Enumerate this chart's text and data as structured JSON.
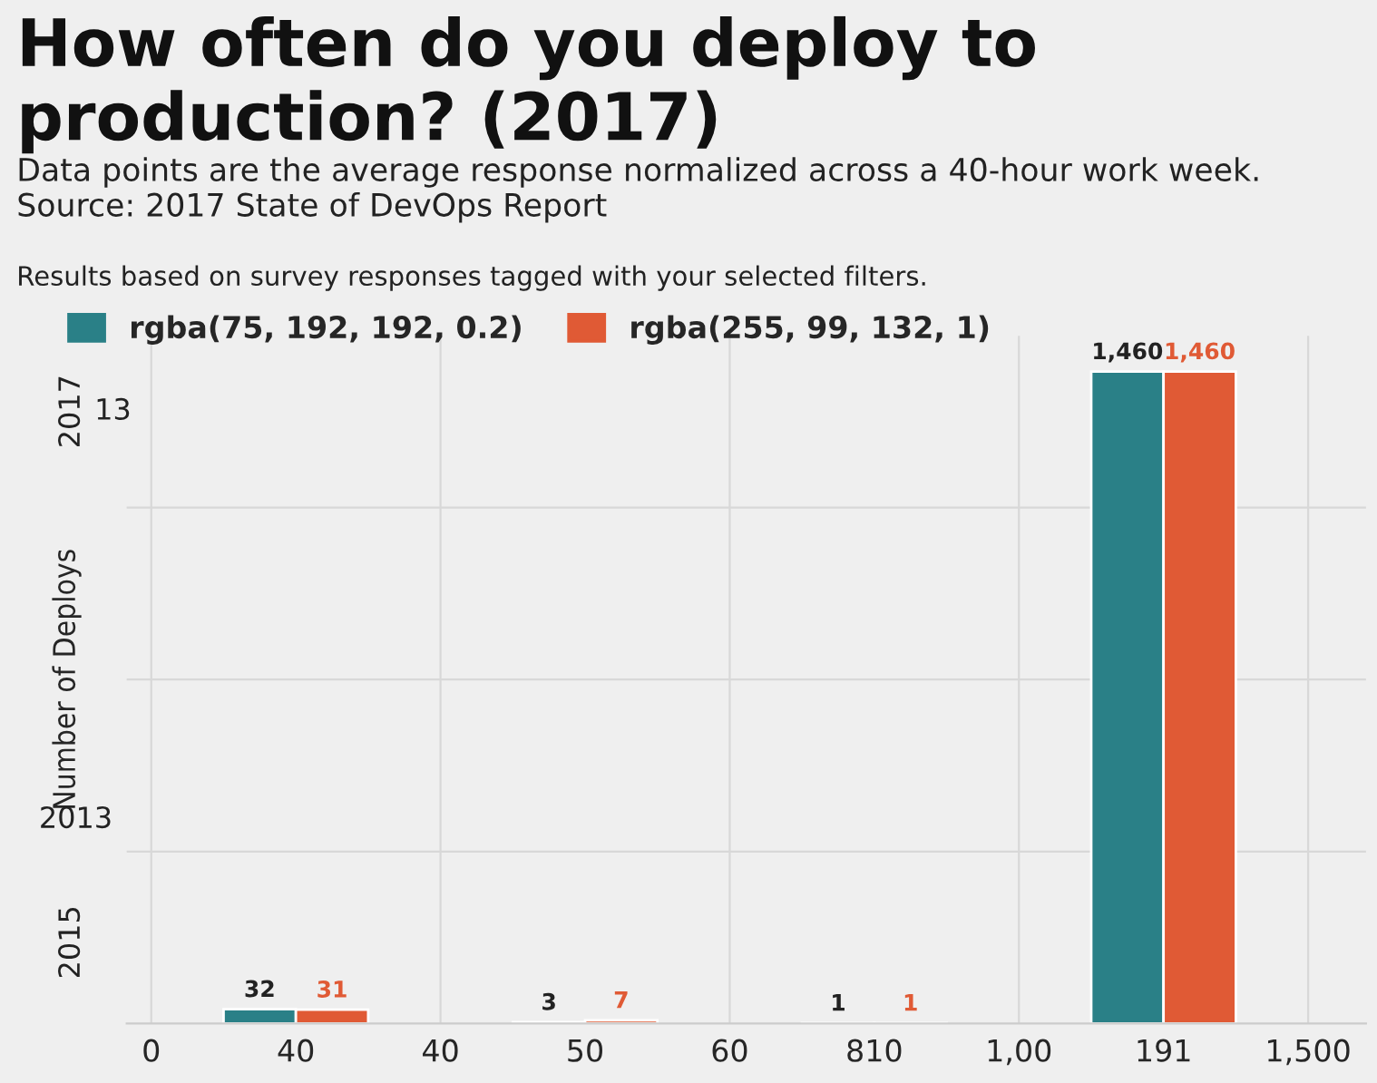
{
  "chart_data": {
    "type": "bar",
    "title": "How often do you deploy to production? (2017)",
    "subtitle": "Data points are the average response normalized across a 40-hour work week. Source: 2017 State of DevOps Report",
    "annotations": [
      "Results based on survey responses tagged with your selected filters.",
      "2017",
      "13",
      "2013",
      "2015"
    ],
    "ylabel": "Number of Deploys",
    "categories": [
      "0",
      "40",
      "40",
      "50",
      "60",
      "810",
      "1,00",
      "191",
      "1,500"
    ],
    "ylim": [
      0,
      1540
    ],
    "series": [
      {
        "name": "rgba(75, 192, 192, 0.2)",
        "color": "#2a8087",
        "values": [
          null,
          32,
          null,
          3,
          null,
          1,
          null,
          1460,
          null
        ],
        "value_labels": [
          null,
          "32",
          null,
          "3",
          null,
          "1",
          null,
          "1,460",
          null
        ]
      },
      {
        "name": "rgba(255, 99, 132, 1)",
        "color": "#e05a35",
        "values": [
          null,
          31,
          null,
          7,
          null,
          1,
          null,
          1460,
          null
        ],
        "value_labels": [
          null,
          "31",
          null,
          "7",
          null,
          "1",
          null,
          "1,460",
          null
        ]
      }
    ],
    "grid": true,
    "legend": "top left"
  }
}
